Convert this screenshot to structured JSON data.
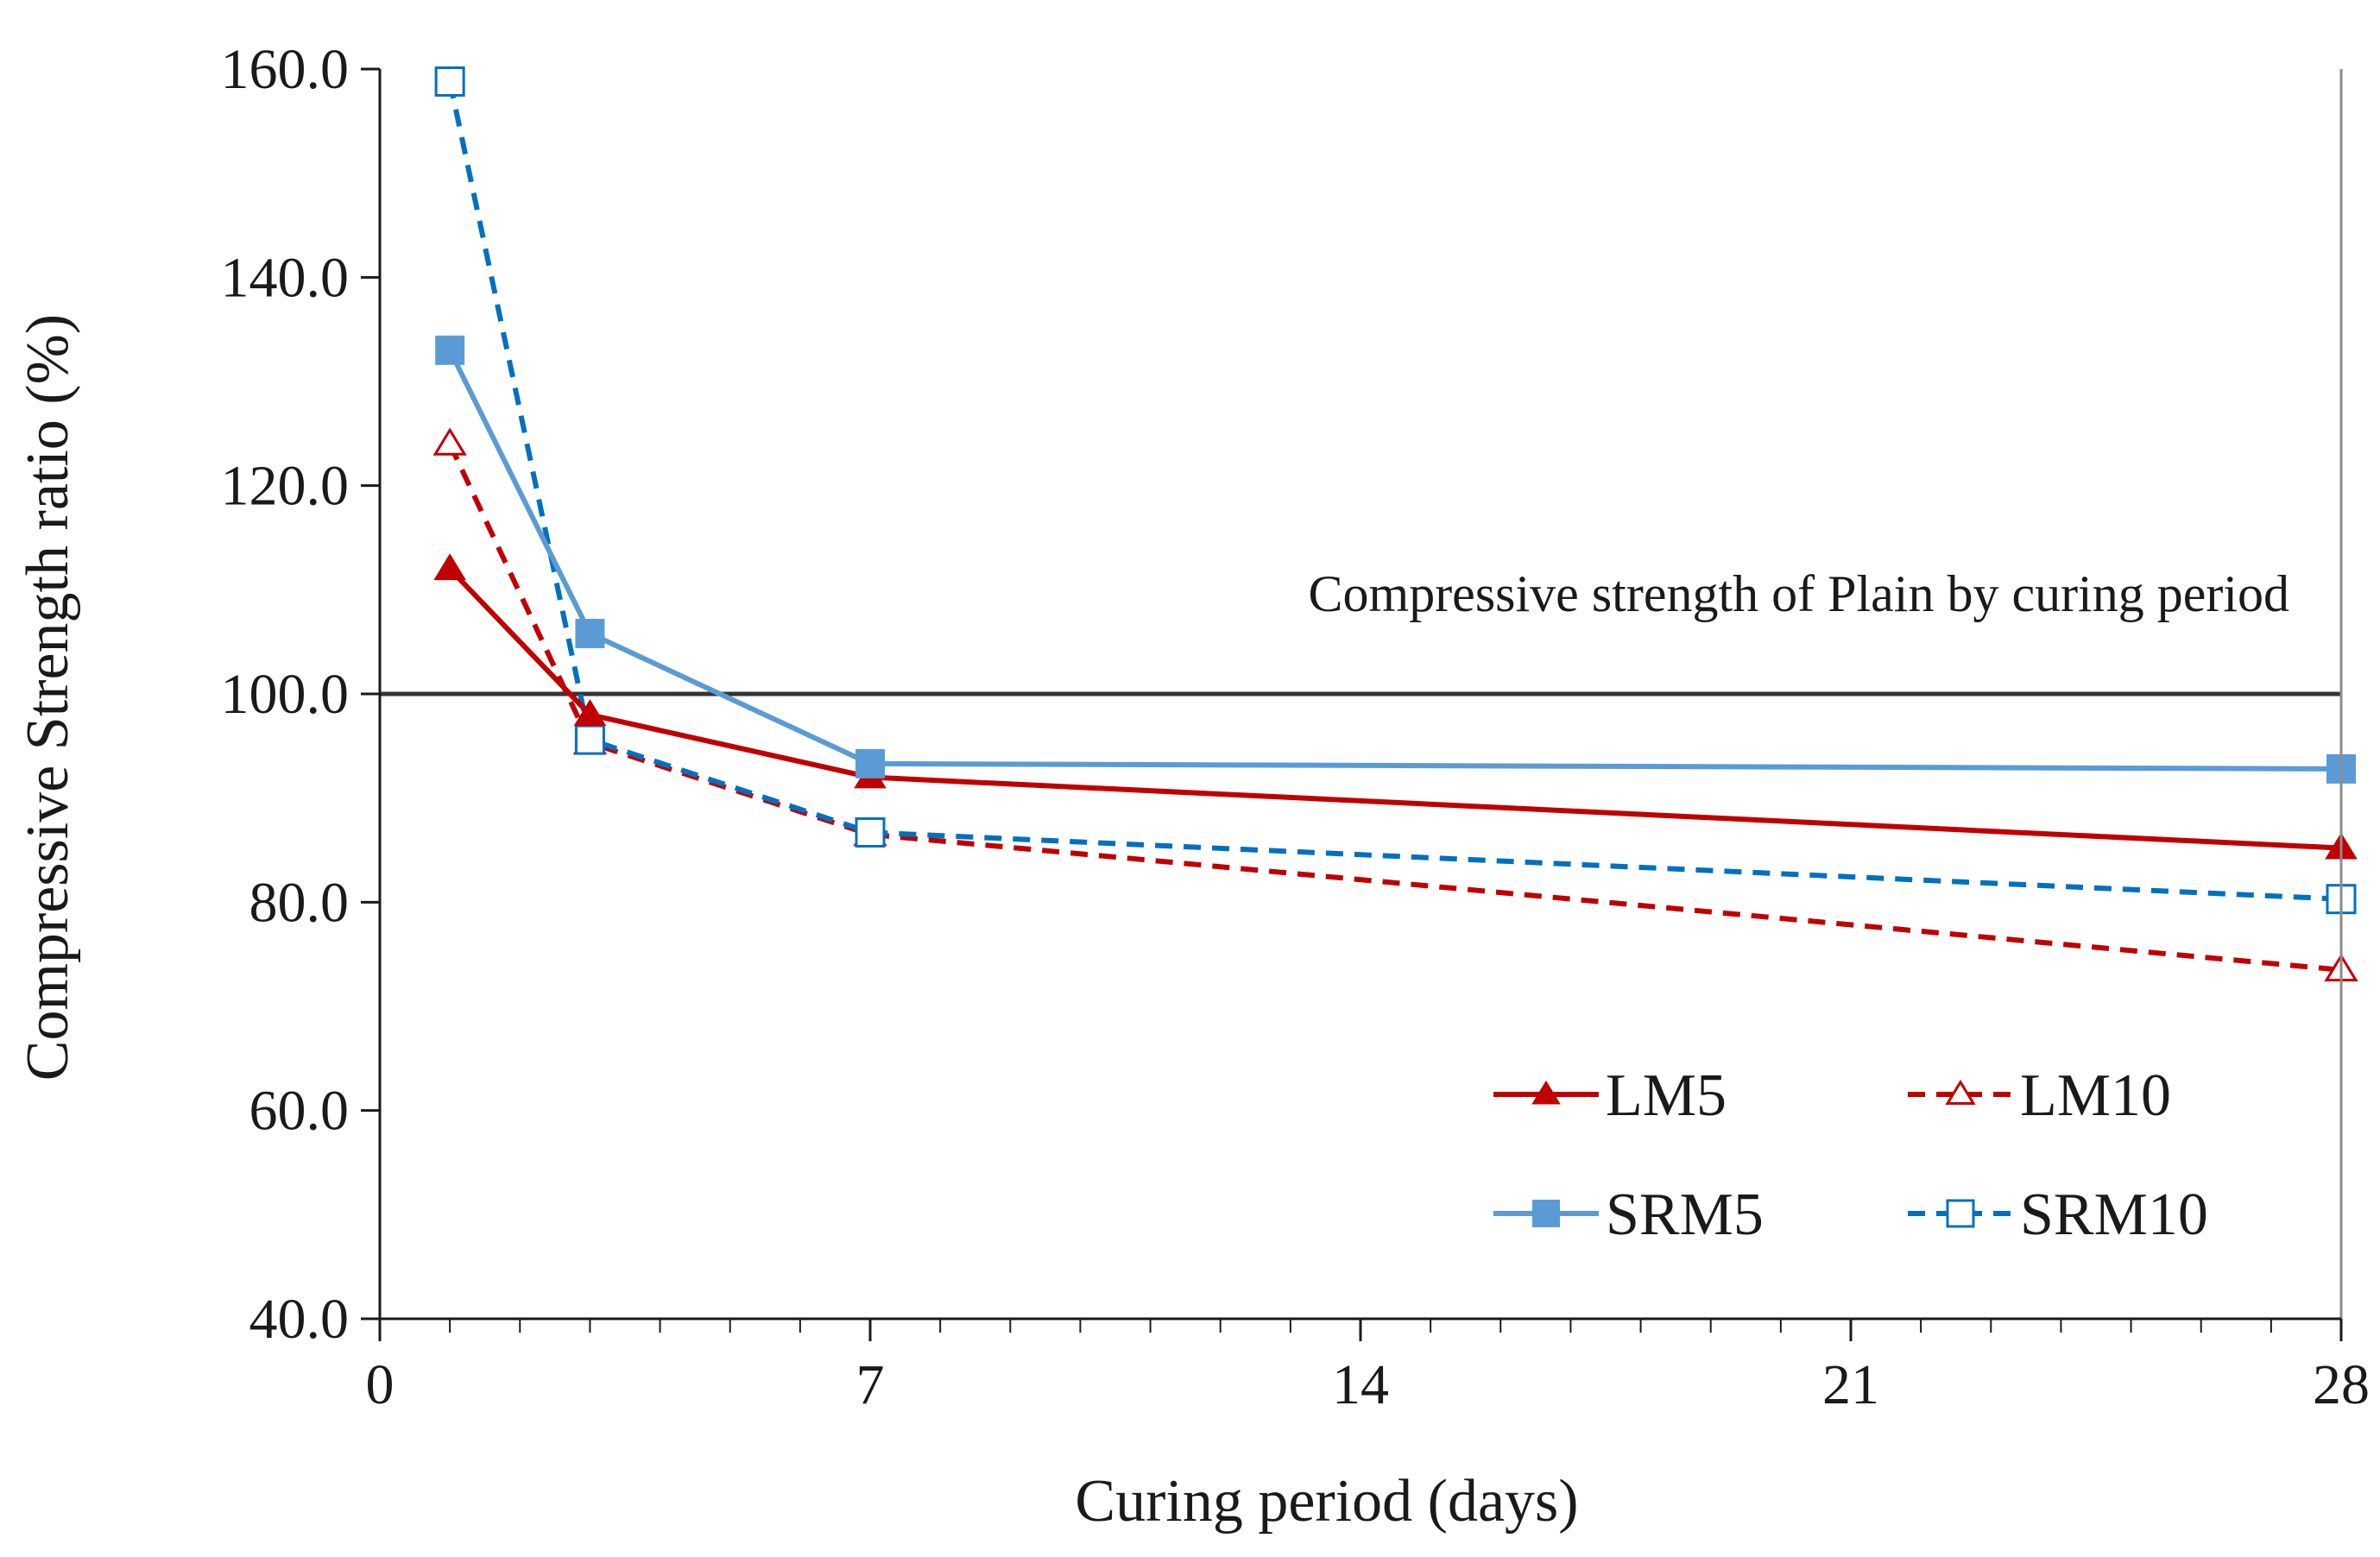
{
  "chart_data": {
    "type": "line",
    "title": "",
    "xlabel": "Curing period (days)",
    "ylabel": "Compressive  Strength ratio (%)",
    "xlim": [
      0,
      28
    ],
    "ylim": [
      40,
      160
    ],
    "xticks": [
      0,
      7,
      14,
      21,
      28
    ],
    "xtick_labels": [
      "0",
      "7",
      "14",
      "21",
      "28"
    ],
    "yticks": [
      40,
      60,
      80,
      100,
      120,
      140,
      160
    ],
    "ytick_labels": [
      "40.0",
      "60.0",
      "80.0",
      "100.0",
      "120.0",
      "140.0",
      "160.0"
    ],
    "x_minor_step": 1,
    "reference_line": {
      "value": 100,
      "label": "Compressive strength of  Plain by curing period",
      "color": "#333333"
    },
    "series": [
      {
        "name": "LM5",
        "color": "#c00000",
        "dash": "solid",
        "marker": "triangle-filled",
        "x": [
          1,
          3,
          7,
          28
        ],
        "values": [
          112.0,
          98.0,
          92.0,
          85.2
        ]
      },
      {
        "name": "LM10",
        "color": "#c00000",
        "dash": "dashed",
        "marker": "triangle-open",
        "x": [
          1,
          3,
          7,
          28
        ],
        "values": [
          124.0,
          95.3,
          86.5,
          73.5
        ]
      },
      {
        "name": "SRM5",
        "color": "#5b9bd5",
        "dash": "solid",
        "marker": "square-filled",
        "x": [
          1,
          3,
          7,
          28
        ],
        "values": [
          133.0,
          105.8,
          93.3,
          92.8
        ]
      },
      {
        "name": "SRM10",
        "color": "#0070c0",
        "dash": "dashed",
        "marker": "square-open",
        "x": [
          1,
          3,
          7,
          28
        ],
        "values": [
          158.8,
          95.6,
          86.7,
          80.3
        ]
      }
    ],
    "legend": {
      "placement": "bottom-right",
      "columns": 2,
      "order": [
        "LM5",
        "LM10",
        "SRM5",
        "SRM10"
      ]
    }
  }
}
